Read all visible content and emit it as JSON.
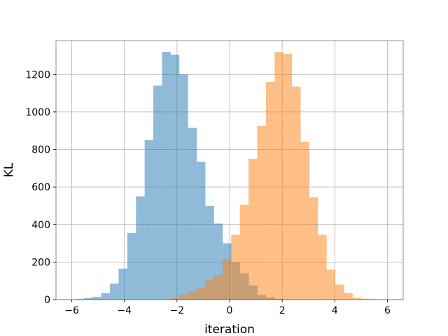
{
  "chart_data": {
    "type": "histogram",
    "xlabel": "iteration",
    "ylabel": "KL",
    "xlim": [
      -6.6,
      6.6
    ],
    "ylim": [
      0,
      1380
    ],
    "x_ticks": [
      -6,
      -4,
      -2,
      0,
      2,
      4,
      6
    ],
    "x_tick_labels": [
      "−6",
      "−4",
      "−2",
      "0",
      "2",
      "4",
      "6"
    ],
    "y_ticks": [
      0,
      200,
      400,
      600,
      800,
      1000,
      1200
    ],
    "y_tick_labels": [
      "0",
      "200",
      "400",
      "600",
      "800",
      "1000",
      "1200"
    ],
    "grid": true,
    "series": [
      {
        "color": "#1f77b4",
        "opacity": 0.5,
        "bin_edges": [
          -5.87,
          -5.54,
          -5.21,
          -4.88,
          -4.55,
          -4.22,
          -3.89,
          -3.56,
          -3.23,
          -2.9,
          -2.57,
          -2.24,
          -1.91,
          -1.58,
          -1.25,
          -0.92,
          -0.59,
          -0.26,
          0.07,
          0.4,
          0.73,
          1.06,
          1.39,
          1.72,
          2.05
        ],
        "counts": [
          3,
          8,
          15,
          35,
          85,
          165,
          355,
          550,
          850,
          1140,
          1320,
          1305,
          1200,
          915,
          735,
          500,
          405,
          300,
          200,
          140,
          75,
          25,
          12,
          4
        ]
      },
      {
        "color": "#ff7f0e",
        "opacity": 0.5,
        "bin_edges": [
          -2.25,
          -1.92,
          -1.59,
          -1.26,
          -0.93,
          -0.6,
          -0.27,
          0.06,
          0.39,
          0.72,
          1.05,
          1.38,
          1.71,
          2.04,
          2.37,
          2.7,
          3.03,
          3.36,
          3.69,
          4.02,
          4.35,
          4.68,
          5.01,
          5.34,
          5.67
        ],
        "counts": [
          8,
          25,
          45,
          65,
          105,
          130,
          215,
          345,
          505,
          750,
          925,
          1160,
          1320,
          1310,
          1135,
          840,
          545,
          345,
          160,
          80,
          35,
          10,
          5,
          2
        ]
      }
    ]
  }
}
